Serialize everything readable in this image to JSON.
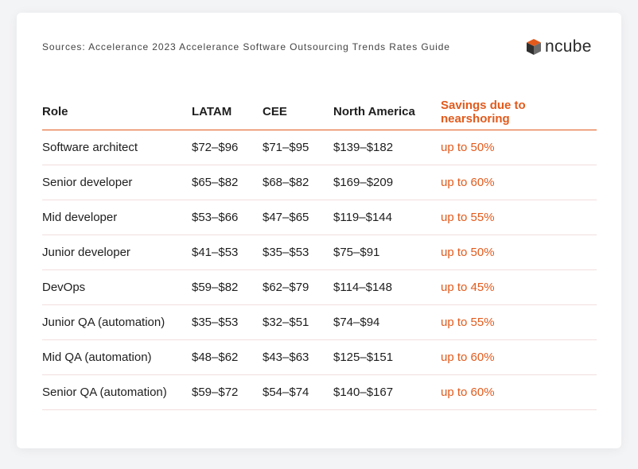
{
  "sources": "Sources: Accelerance 2023 Accelerance Software Outsourcing Trends Rates Guide",
  "logo": {
    "text": "ncube",
    "icon": "cube-logo-icon",
    "accent": "#e25a1c"
  },
  "table": {
    "headers": [
      "Role",
      "LATAM",
      "CEE",
      "North America",
      "Savings due to nearshoring"
    ],
    "rows": [
      [
        "Software architect",
        "$72–$96",
        "$71–$95",
        "$139–$182",
        "up to 50%"
      ],
      [
        "Senior developer",
        "$65–$82",
        "$68–$82",
        "$169–$209",
        "up to 60%"
      ],
      [
        "Mid developer",
        "$53–$66",
        "$47–$65",
        "$119–$144",
        "up to 55%"
      ],
      [
        "Junior developer",
        "$41–$53",
        "$35–$53",
        "$75–$91",
        "up to 50%"
      ],
      [
        "DevOps",
        "$59–$82",
        "$62–$79",
        "$114–$148",
        "up to 45%"
      ],
      [
        "Junior QA (automation)",
        "$35–$53",
        "$32–$51",
        "$74–$94",
        "up to 55%"
      ],
      [
        "Mid QA (automation)",
        "$48–$62",
        "$43–$63",
        "$125–$151",
        "up to 60%"
      ],
      [
        "Senior QA (automation)",
        "$59–$72",
        "$54–$74",
        "$140–$167",
        "up to 60%"
      ]
    ]
  },
  "colors": {
    "accent": "#e25a1c",
    "text": "#1e1e1e",
    "row_divider": "#f3dede"
  }
}
